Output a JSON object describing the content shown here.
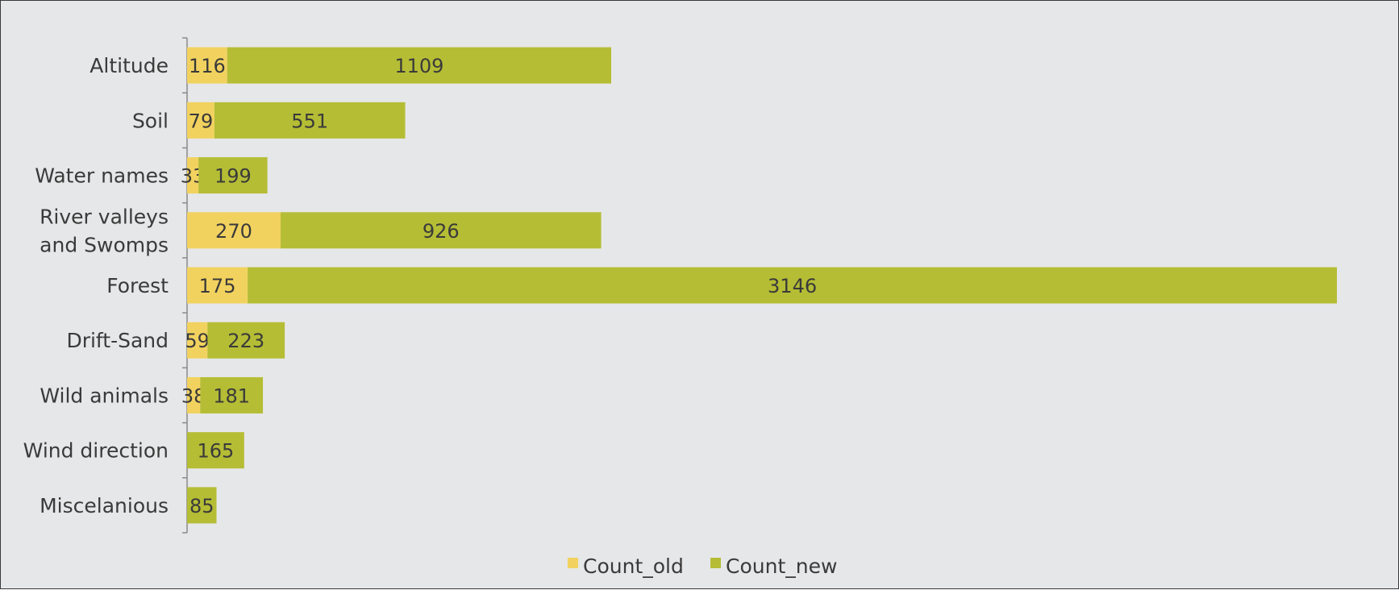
{
  "chart_data": {
    "type": "bar",
    "orientation": "horizontal",
    "stacked": true,
    "title": "",
    "xlabel": "",
    "ylabel": "",
    "categories": [
      [
        "Altitude"
      ],
      [
        "Soil"
      ],
      [
        "Water names"
      ],
      [
        "River valleys",
        "and Swomps"
      ],
      [
        "Forest"
      ],
      [
        "Drift-Sand"
      ],
      [
        "Wild animals"
      ],
      [
        "Wind direction"
      ],
      [
        "Miscelanious"
      ]
    ],
    "series": [
      {
        "name": "Count_old",
        "color": "#f2d25f",
        "values": [
          116,
          79,
          33,
          270,
          175,
          59,
          38,
          0,
          0
        ]
      },
      {
        "name": "Count_new",
        "color": "#b5bd35",
        "values": [
          1109,
          551,
          199,
          926,
          3146,
          223,
          181,
          165,
          85
        ]
      }
    ],
    "xlim": [
      0,
      3400
    ],
    "grid": false,
    "legend_position": "bottom-center"
  }
}
